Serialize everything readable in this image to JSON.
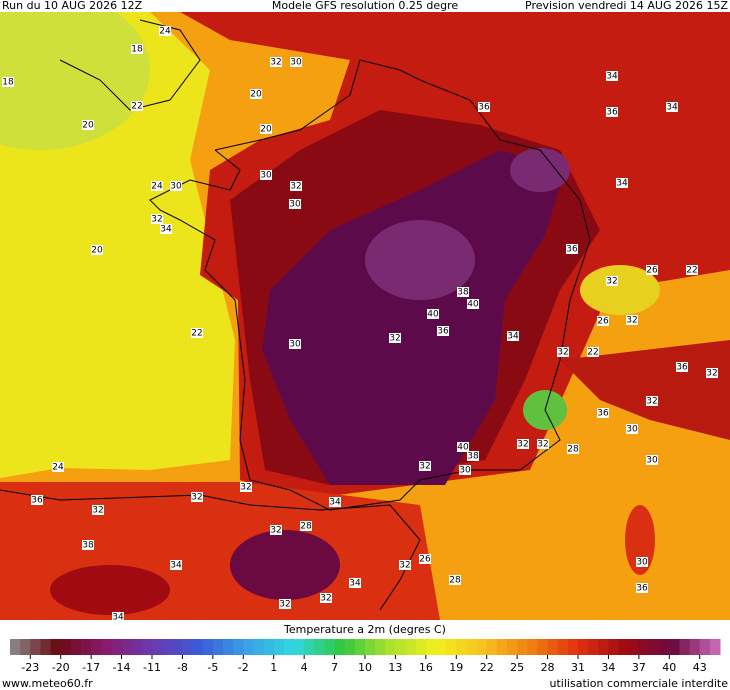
{
  "header": {
    "run": "Run du 10 AUG 2026 12Z",
    "model": "Modele GFS resolution 0.25 degre",
    "forecast": "Prevision vendredi 14 AUG 2026 15Z"
  },
  "map_labels": [
    24,
    18,
    18,
    32,
    30,
    22,
    20,
    20,
    20,
    36,
    34,
    36,
    34,
    24,
    30,
    32,
    30,
    30,
    32,
    34,
    20,
    34,
    36,
    32,
    26,
    22,
    22,
    30,
    38,
    40,
    40,
    32,
    36,
    34,
    26,
    32,
    32,
    22,
    36,
    32,
    32,
    36,
    30,
    40,
    38,
    32,
    32,
    28,
    30,
    24,
    32,
    30,
    32,
    36,
    32,
    32,
    34,
    32,
    28,
    38,
    34,
    26,
    32,
    34,
    28,
    32,
    32,
    30,
    36,
    34
  ],
  "colorbar": {
    "title": "Temperature a 2m (degres C)",
    "lim": [
      -25,
      45
    ],
    "ticks": [
      -23,
      -20,
      -17,
      -14,
      -11,
      -8,
      -5,
      -2,
      1,
      4,
      7,
      10,
      13,
      16,
      19,
      22,
      25,
      28,
      31,
      34,
      37,
      40,
      43
    ],
    "colors": [
      "#8c8c8c",
      "#6a0a14",
      "#8a1a6a",
      "#6a3ab0",
      "#3a5ad8",
      "#3aa0e8",
      "#30d8e0",
      "#30c840",
      "#a8e030",
      "#f0f020",
      "#f8c020",
      "#f08010",
      "#e03010",
      "#a00a10",
      "#6a0a40",
      "#d070c0"
    ]
  },
  "footer": {
    "site": "www.meteo60.fr",
    "notice": "utilisation commerciale interdite"
  }
}
